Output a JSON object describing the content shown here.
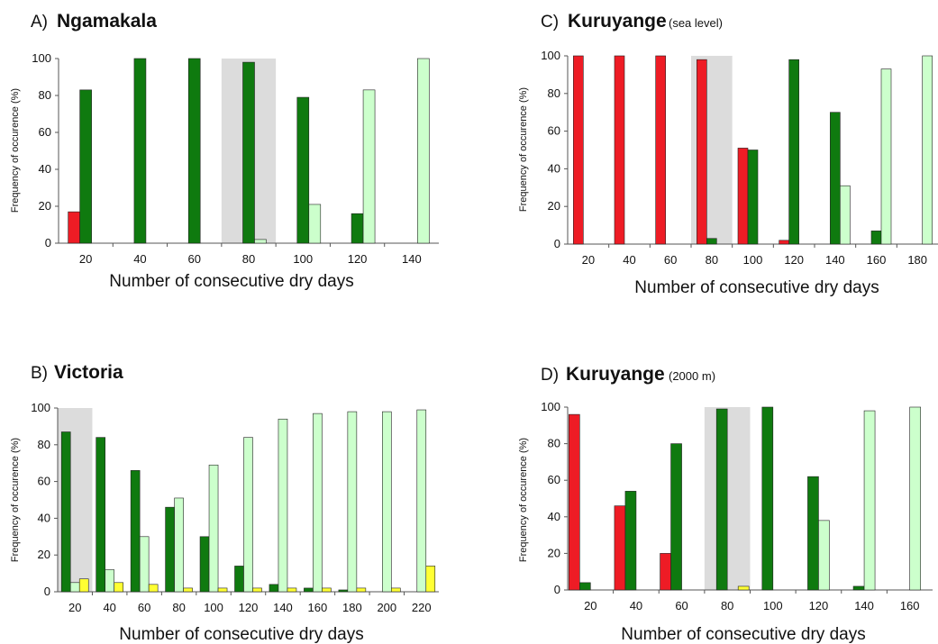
{
  "colors": {
    "red": "#ee1c25",
    "dark_green": "#0f7a0f",
    "light_green": "#ccffcc",
    "yellow": "#ffff33",
    "highlight": "#dcdcdc",
    "axis": "#555555"
  },
  "chart_data": [
    {
      "type": "bar",
      "id": "A",
      "title_prefix": "A)",
      "title": "Ngamakala",
      "title_note": "",
      "ylabel": "Frequency of occurence (%)",
      "xlabel": "Number of consecutive dry days",
      "ylim": [
        0,
        100
      ],
      "yticks": [
        0,
        20,
        40,
        60,
        80,
        100
      ],
      "categories": [
        "20",
        "40",
        "60",
        "80",
        "100",
        "120",
        "140"
      ],
      "highlight_category": "80",
      "series": [
        {
          "color": "red",
          "values": [
            17,
            0,
            0,
            0,
            0,
            0,
            0
          ]
        },
        {
          "color": "dark_green",
          "values": [
            83,
            100,
            100,
            98,
            79,
            16,
            0
          ]
        },
        {
          "color": "light_green",
          "values": [
            0,
            0,
            0,
            2,
            21,
            83,
            100
          ]
        }
      ]
    },
    {
      "type": "bar",
      "id": "B",
      "title_prefix": "B)",
      "title": "Victoria",
      "title_note": "",
      "ylabel": "Frequency of occurence (%)",
      "xlabel": "Number of consecutive  dry days",
      "ylim": [
        0,
        100
      ],
      "yticks": [
        0,
        20,
        40,
        60,
        80,
        100
      ],
      "categories": [
        "20",
        "40",
        "60",
        "80",
        "100",
        "120",
        "140",
        "160",
        "180",
        "200",
        "220"
      ],
      "highlight_category": "20",
      "series": [
        {
          "color": "dark_green",
          "values": [
            87,
            84,
            66,
            46,
            30,
            14,
            4,
            2,
            1,
            0,
            0
          ]
        },
        {
          "color": "light_green",
          "values": [
            5,
            12,
            30,
            51,
            69,
            84,
            94,
            97,
            98,
            98,
            99
          ]
        },
        {
          "color": "yellow",
          "values": [
            7,
            5,
            4,
            2,
            2,
            2,
            2,
            2,
            2,
            2,
            14
          ]
        }
      ]
    },
    {
      "type": "bar",
      "id": "C",
      "title_prefix": "C)",
      "title": "Kuruyange",
      "title_note": "(sea level)",
      "ylabel": "Frequency of occurence (%)",
      "xlabel": "Number of consecutive  dry days",
      "ylim": [
        0,
        100
      ],
      "yticks": [
        0,
        20,
        40,
        60,
        80,
        100
      ],
      "categories": [
        "20",
        "40",
        "60",
        "80",
        "100",
        "120",
        "140",
        "160",
        "180"
      ],
      "highlight_category": "80",
      "series": [
        {
          "color": "red",
          "values": [
            100,
            100,
            100,
            98,
            51,
            2,
            0,
            0,
            0
          ]
        },
        {
          "color": "dark_green",
          "values": [
            0,
            0,
            0,
            3,
            50,
            98,
            70,
            7,
            0
          ]
        },
        {
          "color": "light_green",
          "values": [
            0,
            0,
            0,
            0,
            0,
            0,
            31,
            93,
            100
          ]
        }
      ]
    },
    {
      "type": "bar",
      "id": "D",
      "title_prefix": "D)",
      "title": "Kuruyange",
      "title_note": "(2000 m)",
      "ylabel": "Frequency of occurence (%)",
      "xlabel": "Number of consecutive  dry days",
      "ylim": [
        0,
        100
      ],
      "yticks": [
        0,
        20,
        40,
        60,
        80,
        100
      ],
      "categories": [
        "20",
        "40",
        "60",
        "80",
        "100",
        "120",
        "140",
        "160"
      ],
      "highlight_category": "80",
      "series": [
        {
          "color": "red",
          "values": [
            96,
            46,
            20,
            0,
            0,
            0,
            0,
            0
          ]
        },
        {
          "color": "dark_green",
          "values": [
            4,
            54,
            80,
            99,
            100,
            62,
            2,
            0
          ]
        },
        {
          "color": "light_green",
          "values": [
            0,
            0,
            0,
            0,
            0,
            38,
            98,
            100
          ]
        },
        {
          "color": "yellow",
          "values": [
            0,
            0,
            0,
            2,
            0,
            0,
            0,
            0
          ]
        }
      ]
    }
  ]
}
